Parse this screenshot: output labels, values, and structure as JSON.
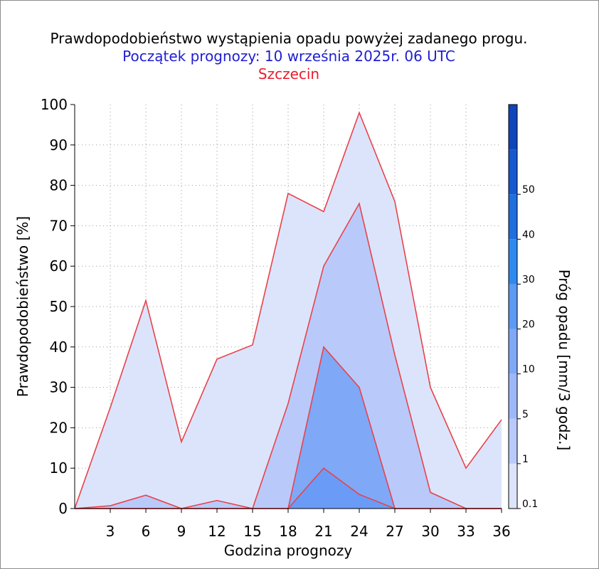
{
  "chart_data": {
    "type": "area",
    "title": "Prawdopodobieństwo wystąpienia opadu powyżej zadanego progu.",
    "subtitle": "Początek prognozy: 10 września 2025r. 06 UTC",
    "location": "Szczecin",
    "xlabel": "Godzina prognozy",
    "ylabel": "Prawdopodobieństwo [%]",
    "colorbar_label": "Próg opadu [mm/3 godz.]",
    "xlim": [
      0,
      36
    ],
    "ylim": [
      0,
      100
    ],
    "x_ticks": [
      "3",
      "6",
      "9",
      "12",
      "15",
      "18",
      "21",
      "24",
      "27",
      "30",
      "33",
      "36"
    ],
    "y_ticks": [
      "0",
      "10",
      "20",
      "30",
      "40",
      "50",
      "60",
      "70",
      "80",
      "90",
      "100"
    ],
    "grid": true,
    "x": [
      0,
      3,
      6,
      9,
      12,
      15,
      18,
      21,
      24,
      27,
      30,
      33,
      36
    ],
    "series": [
      {
        "threshold": 0.1,
        "color": "#dce4fb",
        "values": [
          0,
          25,
          51.5,
          16.5,
          37,
          40.5,
          78,
          73.5,
          98,
          76,
          30,
          10,
          22
        ]
      },
      {
        "threshold": 1,
        "color": "#b9cafa",
        "values": [
          0,
          0.7,
          3.3,
          0,
          2,
          0,
          26,
          60,
          75.5,
          38,
          4,
          0,
          0
        ]
      },
      {
        "threshold": 5,
        "color": "#7fa8f7",
        "values": [
          0,
          0,
          0,
          0,
          0,
          0,
          0,
          40,
          30,
          0,
          0,
          0,
          0
        ]
      },
      {
        "threshold": 10,
        "color": "#6a9cf7",
        "values": [
          0,
          0,
          0,
          0,
          0,
          0,
          0,
          10,
          3.5,
          0,
          0,
          0,
          0
        ]
      }
    ],
    "colorbar": {
      "labels": [
        "0.1",
        "1",
        "5",
        "10",
        "20",
        "30",
        "40",
        "50"
      ],
      "colors": [
        "#dce4fb",
        "#b9cafa",
        "#9cb8f8",
        "#7fa8f7",
        "#5c9af4",
        "#2f8af0",
        "#1e6fe0",
        "#1558cf",
        "#0f45bb"
      ]
    },
    "line_color": "#e8424a"
  }
}
